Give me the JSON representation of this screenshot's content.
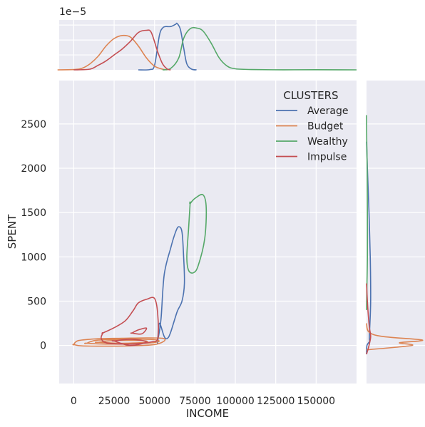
{
  "chart_data": {
    "type": "scatter",
    "kind": "jointplot-kde",
    "xlabel": "INCOME",
    "ylabel": "SPENT",
    "xlim": [
      -9000,
      175000
    ],
    "ylim": [
      -430,
      2990
    ],
    "xticks": [
      0,
      25000,
      50000,
      75000,
      100000,
      125000,
      150000
    ],
    "yticks": [
      0,
      500,
      1000,
      1500,
      2000,
      2500
    ],
    "top_offset_label": "1e−5",
    "grid": true,
    "background": "#eaeaf2",
    "legend": {
      "title": "CLUSTERS",
      "placement": "top-right",
      "entries": [
        "Average",
        "Budget",
        "Wealthy",
        "Impulse"
      ]
    },
    "colors": {
      "Average": "#4c72b0",
      "Budget": "#dd8452",
      "Wealthy": "#55a868",
      "Impulse": "#c44e52"
    },
    "series": [
      {
        "name": "Average",
        "contours": [
          [
            [
              52000,
              50
            ],
            [
              54000,
              300
            ],
            [
              56000,
              800
            ],
            [
              60000,
              1100
            ],
            [
              63000,
              1280
            ],
            [
              65000,
              1340
            ],
            [
              67000,
              1280
            ],
            [
              68000,
              1000
            ],
            [
              68500,
              700
            ],
            [
              67000,
              500
            ],
            [
              64000,
              380
            ],
            [
              60000,
              150
            ],
            [
              58000,
              80
            ],
            [
              56000,
              100
            ],
            [
              53000,
              250
            ],
            [
              52000,
              50
            ]
          ]
        ],
        "x_density": [
          [
            40000,
            0
          ],
          [
            47000,
            0.02
          ],
          [
            50000,
            0.3
          ],
          [
            53000,
            2.3
          ],
          [
            55000,
            2.8
          ],
          [
            57000,
            2.9
          ],
          [
            60000,
            2.9
          ],
          [
            63000,
            3.05
          ],
          [
            64000,
            3.1
          ],
          [
            66000,
            2.7
          ],
          [
            68000,
            1.5
          ],
          [
            70000,
            0.4
          ],
          [
            73000,
            0.05
          ],
          [
            76000,
            0
          ]
        ],
        "y_density": [
          [
            -100,
            0
          ],
          [
            0,
            0.05
          ],
          [
            50,
            0.4
          ],
          [
            100,
            0.35
          ],
          [
            500,
            0.5
          ],
          [
            1000,
            0.45
          ],
          [
            1500,
            0.3
          ],
          [
            2000,
            0.1
          ],
          [
            2300,
            0
          ]
        ]
      },
      {
        "name": "Budget",
        "contours": [
          [
            [
              0,
              10
            ],
            [
              5000,
              -5
            ],
            [
              20000,
              -8
            ],
            [
              35000,
              -5
            ],
            [
              50000,
              10
            ],
            [
              56000,
              50
            ],
            [
              55000,
              80
            ],
            [
              45000,
              85
            ],
            [
              30000,
              80
            ],
            [
              15000,
              75
            ],
            [
              3000,
              55
            ],
            [
              0,
              10
            ]
          ],
          [
            [
              8000,
              25
            ],
            [
              20000,
              15
            ],
            [
              40000,
              20
            ],
            [
              52000,
              40
            ],
            [
              50000,
              65
            ],
            [
              35000,
              70
            ],
            [
              15000,
              60
            ],
            [
              8000,
              25
            ]
          ],
          [
            [
              15000,
              35
            ],
            [
              30000,
              25
            ],
            [
              45000,
              35
            ],
            [
              42000,
              55
            ],
            [
              25000,
              55
            ],
            [
              15000,
              35
            ]
          ]
        ],
        "x_density": [
          [
            -10000,
            0
          ],
          [
            0,
            0.02
          ],
          [
            5000,
            0.1
          ],
          [
            10000,
            0.4
          ],
          [
            15000,
            0.9
          ],
          [
            20000,
            1.6
          ],
          [
            25000,
            2.1
          ],
          [
            30000,
            2.3
          ],
          [
            35000,
            2.2
          ],
          [
            40000,
            1.6
          ],
          [
            45000,
            0.8
          ],
          [
            50000,
            0.25
          ],
          [
            55000,
            0.05
          ],
          [
            58000,
            0
          ]
        ],
        "y_density": [
          [
            -50,
            0
          ],
          [
            0,
            5.5
          ],
          [
            30,
            4
          ],
          [
            60,
            6.8
          ],
          [
            100,
            2
          ],
          [
            150,
            0.3
          ],
          [
            250,
            0
          ]
        ]
      },
      {
        "name": "Wealthy",
        "contours": [
          [
            [
              72000,
              1600
            ],
            [
              75000,
              1660
            ],
            [
              80000,
              1700
            ],
            [
              82000,
              1550
            ],
            [
              81000,
              1200
            ],
            [
              77000,
              900
            ],
            [
              74000,
              820
            ],
            [
              71000,
              850
            ],
            [
              70000,
              1000
            ],
            [
              71000,
              1300
            ],
            [
              72000,
              1600
            ]
          ]
        ],
        "x_density": [
          [
            55000,
            0
          ],
          [
            60000,
            0.1
          ],
          [
            65000,
            0.8
          ],
          [
            68000,
            2.1
          ],
          [
            72000,
            2.75
          ],
          [
            76000,
            2.8
          ],
          [
            80000,
            2.6
          ],
          [
            85000,
            1.8
          ],
          [
            90000,
            0.8
          ],
          [
            95000,
            0.25
          ],
          [
            100000,
            0.07
          ],
          [
            110000,
            0.02
          ],
          [
            130000,
            0.005
          ],
          [
            150000,
            0.01
          ],
          [
            165000,
            0.005
          ],
          [
            175000,
            0
          ]
        ],
        "y_density": [
          [
            400,
            0
          ],
          [
            700,
            0.05
          ],
          [
            1000,
            0.1
          ],
          [
            1500,
            0.1
          ],
          [
            2000,
            0.08
          ],
          [
            2300,
            0.03
          ],
          [
            2600,
            0
          ]
        ]
      },
      {
        "name": "Impulse",
        "contours": [
          [
            [
              18000,
              140
            ],
            [
              25000,
              200
            ],
            [
              32000,
              280
            ],
            [
              37000,
              400
            ],
            [
              40000,
              480
            ],
            [
              45000,
              520
            ],
            [
              50000,
              530
            ],
            [
              52000,
              350
            ],
            [
              52000,
              80
            ],
            [
              48000,
              40
            ],
            [
              40000,
              20
            ],
            [
              30000,
              15
            ],
            [
              20000,
              30
            ],
            [
              17000,
              80
            ],
            [
              18000,
              140
            ]
          ],
          [
            [
              36000,
              140
            ],
            [
              40000,
              175
            ],
            [
              45000,
              195
            ],
            [
              42000,
              130
            ],
            [
              36000,
              140
            ]
          ],
          [
            [
              25000,
              50
            ],
            [
              35000,
              0
            ],
            [
              45000,
              40
            ],
            [
              35000,
              70
            ],
            [
              25000,
              50
            ]
          ]
        ],
        "x_density": [
          [
            0,
            0
          ],
          [
            10000,
            0.05
          ],
          [
            15000,
            0.3
          ],
          [
            20000,
            0.6
          ],
          [
            25000,
            1.0
          ],
          [
            30000,
            1.4
          ],
          [
            35000,
            1.9
          ],
          [
            40000,
            2.5
          ],
          [
            45000,
            2.65
          ],
          [
            48000,
            2.5
          ],
          [
            52000,
            1.2
          ],
          [
            55000,
            0.4
          ],
          [
            58000,
            0.05
          ],
          [
            60000,
            0
          ]
        ],
        "y_density": [
          [
            -100,
            0
          ],
          [
            0,
            0.3
          ],
          [
            100,
            0.5
          ],
          [
            200,
            0.35
          ],
          [
            300,
            0.25
          ],
          [
            500,
            0.1
          ],
          [
            700,
            0
          ]
        ]
      }
    ]
  }
}
